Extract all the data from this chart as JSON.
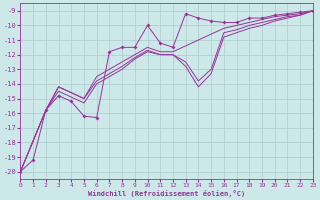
{
  "xlabel": "Windchill (Refroidissement éolien,°C)",
  "bg_color": "#cce8e8",
  "line_color": "#993399",
  "grid_color": "#aacccc",
  "xlim": [
    0,
    23
  ],
  "ylim": [
    -20.5,
    -8.5
  ],
  "xticks": [
    0,
    1,
    2,
    3,
    4,
    5,
    6,
    7,
    8,
    9,
    10,
    11,
    12,
    13,
    14,
    15,
    16,
    17,
    18,
    19,
    20,
    21,
    22,
    23
  ],
  "yticks": [
    -20,
    -19,
    -18,
    -17,
    -16,
    -15,
    -14,
    -13,
    -12,
    -11,
    -10,
    -9
  ],
  "lines": [
    {
      "x": [
        0,
        1,
        2,
        3,
        4,
        5,
        6,
        7,
        8,
        9,
        10,
        11,
        12,
        13,
        14,
        15,
        16,
        17,
        18,
        19,
        20,
        21,
        22,
        23
      ],
      "y": [
        -20,
        -19.2,
        -15.8,
        -14.8,
        -15.2,
        -16.2,
        -16.3,
        -11.8,
        -11.5,
        -11.5,
        -10.0,
        -11.2,
        -11.5,
        -9.2,
        -9.5,
        -9.7,
        -9.8,
        -9.8,
        -9.5,
        -9.5,
        -9.3,
        -9.2,
        -9.1,
        -9.0
      ],
      "marker": true
    },
    {
      "x": [
        0,
        2,
        3,
        5,
        6,
        7,
        8,
        9,
        10,
        11,
        12,
        16,
        17,
        18,
        19,
        20,
        21,
        22,
        23
      ],
      "y": [
        -20,
        -15.8,
        -14.2,
        -15.0,
        -13.5,
        -13.0,
        -12.5,
        -12.0,
        -11.5,
        -11.8,
        -11.8,
        -10.2,
        -10.0,
        -9.8,
        -9.6,
        -9.4,
        -9.3,
        -9.2,
        -9.0
      ],
      "marker": false
    },
    {
      "x": [
        0,
        2,
        3,
        5,
        6,
        7,
        8,
        9,
        10,
        11,
        12,
        13,
        14,
        15,
        16,
        17,
        18,
        19,
        20,
        21,
        22,
        23
      ],
      "y": [
        -20,
        -15.8,
        -14.5,
        -15.3,
        -14.0,
        -13.5,
        -13.0,
        -12.3,
        -11.8,
        -12.0,
        -12.0,
        -12.5,
        -13.8,
        -13.0,
        -10.5,
        -10.3,
        -10.0,
        -9.8,
        -9.6,
        -9.4,
        -9.3,
        -9.0
      ],
      "marker": false
    },
    {
      "x": [
        0,
        2,
        3,
        5,
        6,
        7,
        8,
        9,
        10,
        11,
        12,
        13,
        14,
        15,
        16,
        17,
        18,
        19,
        20,
        21,
        22,
        23
      ],
      "y": [
        -20,
        -15.8,
        -14.2,
        -15.0,
        -13.8,
        -13.3,
        -12.8,
        -12.2,
        -11.7,
        -12.0,
        -12.0,
        -12.8,
        -14.2,
        -13.3,
        -10.8,
        -10.5,
        -10.2,
        -10.0,
        -9.7,
        -9.5,
        -9.3,
        -9.0
      ],
      "marker": false
    }
  ]
}
